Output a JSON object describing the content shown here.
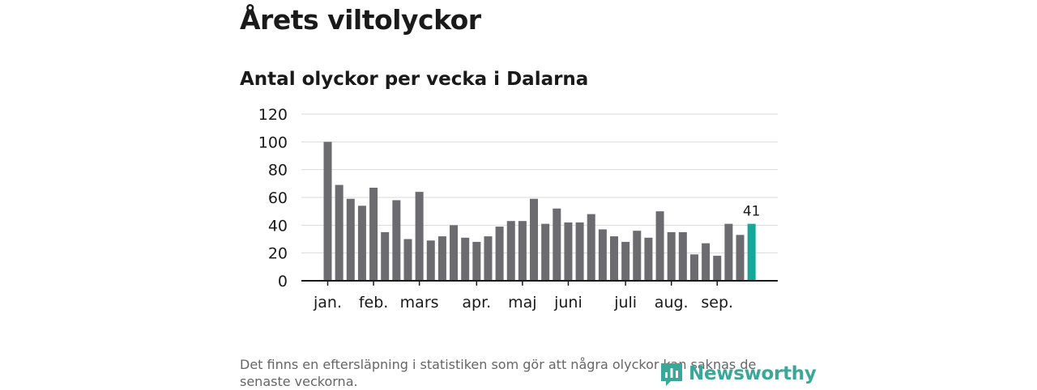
{
  "title": "Årets viltolyckor",
  "subtitle": "Antal olyckor per vecka i Dalarna",
  "footnote": "Det finns en eftersläpning i statistiken som gör att några olyckor kan saknas de senaste veckorna.",
  "logo_text": "Newsworthy",
  "colors": {
    "bar": "#6b6b70",
    "highlight": "#14a89a",
    "grid": "#d9d9d9",
    "axis": "#1a1a1a",
    "logo": "#3aa898"
  },
  "chart_data": {
    "type": "bar",
    "title": "Antal olyckor per vecka i Dalarna",
    "xlabel": "",
    "ylabel": "",
    "ylim": [
      0,
      120
    ],
    "yticks": [
      0,
      20,
      40,
      60,
      80,
      100,
      120
    ],
    "grid": true,
    "values": [
      100,
      69,
      59,
      54,
      67,
      35,
      58,
      30,
      64,
      29,
      32,
      40,
      31,
      28,
      32,
      39,
      43,
      43,
      59,
      41,
      52,
      42,
      42,
      48,
      37,
      32,
      28,
      36,
      31,
      50,
      35,
      35,
      19,
      27,
      18,
      41,
      33,
      41
    ],
    "highlight_index": 37,
    "highlight_label": "41",
    "month_labels": [
      {
        "label": "jan.",
        "bar": 0
      },
      {
        "label": "feb.",
        "bar": 4
      },
      {
        "label": "mars",
        "bar": 8
      },
      {
        "label": "apr.",
        "bar": 13
      },
      {
        "label": "maj",
        "bar": 17
      },
      {
        "label": "juni",
        "bar": 21
      },
      {
        "label": "juli",
        "bar": 26
      },
      {
        "label": "aug.",
        "bar": 30
      },
      {
        "label": "sep.",
        "bar": 34
      }
    ]
  }
}
